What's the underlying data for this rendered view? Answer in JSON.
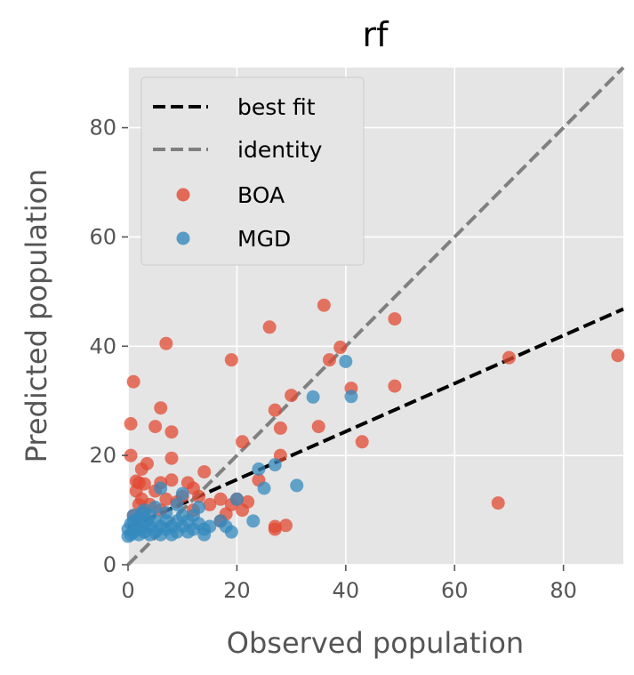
{
  "chart_data": {
    "type": "scatter",
    "title": "rf",
    "xlabel": "Observed population",
    "ylabel": "Predicted population",
    "xlim": [
      0,
      91
    ],
    "ylim": [
      0,
      91
    ],
    "xticks": [
      0,
      20,
      40,
      60,
      80
    ],
    "yticks": [
      0,
      20,
      40,
      60,
      80
    ],
    "grid": true,
    "legend_position": "top-left",
    "colors": {
      "plot_background": "#e5e5e5",
      "grid": "#ffffff",
      "best_fit": "#000000",
      "identity": "#808080",
      "BOA": "#e24a33",
      "MGD": "#348abd"
    },
    "lines": [
      {
        "name": "best fit",
        "style": "dashed",
        "x": [
          0,
          91
        ],
        "y": [
          6.8,
          46.8
        ]
      },
      {
        "name": "identity",
        "style": "dashed",
        "x": [
          0,
          91
        ],
        "y": [
          0,
          91
        ]
      }
    ],
    "series": [
      {
        "name": "BOA",
        "points": [
          [
            0.5,
            25.8
          ],
          [
            0.5,
            20
          ],
          [
            1,
            33.5
          ],
          [
            1,
            9
          ],
          [
            1.5,
            13.5
          ],
          [
            1.5,
            15.3
          ],
          [
            2,
            11
          ],
          [
            2,
            15
          ],
          [
            2.5,
            17.5
          ],
          [
            2.5,
            12
          ],
          [
            3,
            14.8
          ],
          [
            3.5,
            18.5
          ],
          [
            3,
            9.5
          ],
          [
            4,
            11
          ],
          [
            5,
            25.3
          ],
          [
            5,
            13.5
          ],
          [
            6,
            28.7
          ],
          [
            6,
            15
          ],
          [
            6,
            10
          ],
          [
            7,
            40.5
          ],
          [
            7,
            12
          ],
          [
            8,
            24.3
          ],
          [
            8,
            19.5
          ],
          [
            8,
            15.5
          ],
          [
            9,
            11.5
          ],
          [
            10,
            12.5
          ],
          [
            11,
            15
          ],
          [
            12,
            14
          ],
          [
            12,
            10
          ],
          [
            13,
            12.5
          ],
          [
            14,
            17
          ],
          [
            15,
            11
          ],
          [
            17,
            12
          ],
          [
            17,
            8
          ],
          [
            18,
            9.3
          ],
          [
            19,
            37.5
          ],
          [
            19,
            11
          ],
          [
            20,
            12
          ],
          [
            21,
            22.5
          ],
          [
            21,
            10
          ],
          [
            22,
            11.5
          ],
          [
            24,
            15.5
          ],
          [
            26,
            43.5
          ],
          [
            27,
            28.3
          ],
          [
            27,
            7
          ],
          [
            27,
            6.5
          ],
          [
            28,
            25
          ],
          [
            28,
            20
          ],
          [
            29,
            7.2
          ],
          [
            30,
            31
          ],
          [
            35,
            25.3
          ],
          [
            36,
            47.5
          ],
          [
            37,
            37.5
          ],
          [
            39,
            39.8
          ],
          [
            41,
            32.3
          ],
          [
            43,
            22.5
          ],
          [
            49,
            45
          ],
          [
            49,
            32.7
          ],
          [
            68,
            11.3
          ],
          [
            70,
            37.9
          ],
          [
            90,
            38.3
          ]
        ]
      },
      {
        "name": "MGD",
        "points": [
          [
            0,
            5.2
          ],
          [
            0,
            6.5
          ],
          [
            0.5,
            7.5
          ],
          [
            0.5,
            5.5
          ],
          [
            1,
            6
          ],
          [
            1,
            8
          ],
          [
            1,
            9
          ],
          [
            1.5,
            7
          ],
          [
            2,
            5.5
          ],
          [
            2,
            6.5
          ],
          [
            2,
            8.5
          ],
          [
            2.5,
            9.5
          ],
          [
            3,
            6
          ],
          [
            3,
            7.5
          ],
          [
            3,
            10
          ],
          [
            3.5,
            8
          ],
          [
            4,
            5.5
          ],
          [
            4,
            7
          ],
          [
            4,
            9
          ],
          [
            5,
            6
          ],
          [
            5,
            8
          ],
          [
            5,
            10.5
          ],
          [
            6,
            5.5
          ],
          [
            6,
            7
          ],
          [
            6,
            14
          ],
          [
            7,
            6.5
          ],
          [
            7,
            8
          ],
          [
            7,
            9.5
          ],
          [
            8,
            5.5
          ],
          [
            8,
            7
          ],
          [
            9,
            6
          ],
          [
            9,
            8
          ],
          [
            9,
            11
          ],
          [
            10,
            7
          ],
          [
            10,
            9
          ],
          [
            10,
            13
          ],
          [
            11,
            6
          ],
          [
            11,
            8
          ],
          [
            12,
            6.5
          ],
          [
            12,
            9
          ],
          [
            13,
            7.5
          ],
          [
            13,
            10.5
          ],
          [
            14,
            5.5
          ],
          [
            14,
            6.5
          ],
          [
            15,
            7
          ],
          [
            17,
            8
          ],
          [
            18,
            7
          ],
          [
            19,
            6
          ],
          [
            20,
            12
          ],
          [
            23,
            8
          ],
          [
            24,
            17.5
          ],
          [
            25,
            14
          ],
          [
            27,
            18.3
          ],
          [
            31,
            14.5
          ],
          [
            34,
            30.7
          ],
          [
            40,
            37.2
          ],
          [
            41,
            30.8
          ]
        ]
      }
    ]
  }
}
